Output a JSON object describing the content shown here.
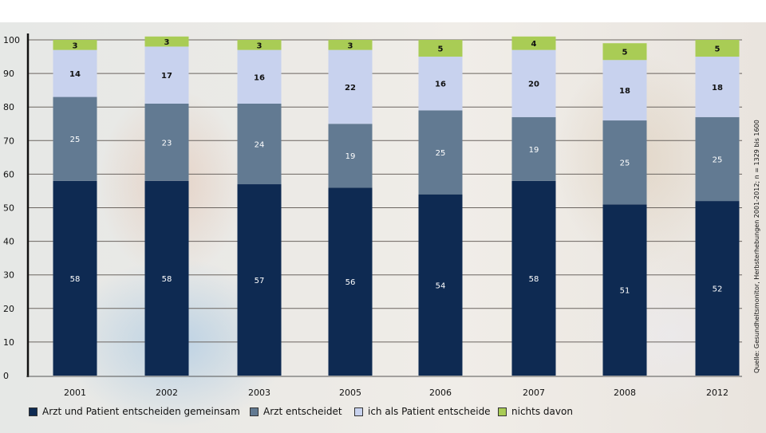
{
  "chart_data": {
    "type": "bar",
    "stacked": true,
    "categories": [
      "2001",
      "2002",
      "2003",
      "2005",
      "2006",
      "2007",
      "2008",
      "2012"
    ],
    "series": [
      {
        "name": "Arzt und Patient entscheiden gemeinsam",
        "color": "#0e2a52",
        "label_color": "#ffffff",
        "values": [
          58,
          58,
          57,
          56,
          54,
          58,
          51,
          52
        ]
      },
      {
        "name": "Arzt entscheidet",
        "color": "#627a92",
        "label_color": "#ffffff",
        "values": [
          25,
          23,
          24,
          19,
          25,
          19,
          25,
          25
        ]
      },
      {
        "name": "ich als Patient entscheide",
        "color": "#c8d2ee",
        "label_color": "#111111",
        "values": [
          14,
          17,
          16,
          22,
          16,
          20,
          18,
          18
        ]
      },
      {
        "name": "nichts davon",
        "color": "#a9cc55",
        "label_color": "#111111",
        "values": [
          3,
          3,
          3,
          3,
          5,
          4,
          5,
          5
        ]
      }
    ],
    "ylim": [
      0,
      100
    ],
    "yticks": [
      0,
      10,
      20,
      30,
      40,
      50,
      60,
      70,
      80,
      90,
      100
    ],
    "grid": true,
    "legend_position": "bottom",
    "source": "Quelle: Gesundheitsmonitor, Herbsterhebungen 2001-2012; n = 1329 bis 1600"
  }
}
